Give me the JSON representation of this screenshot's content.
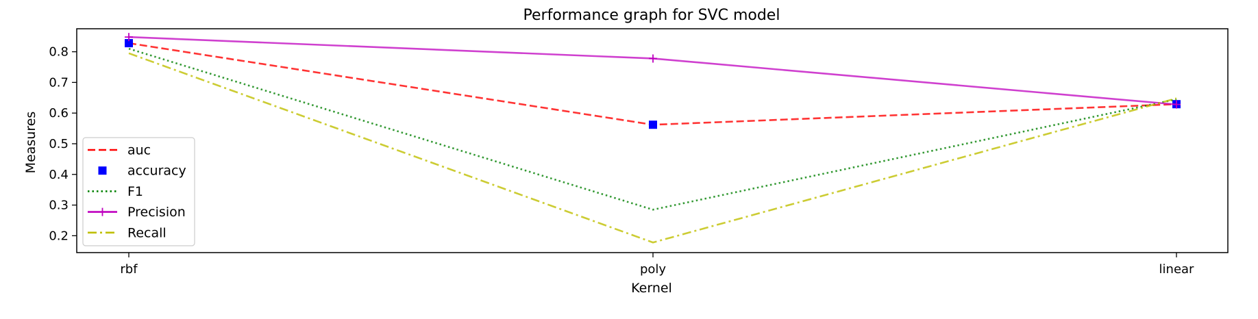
{
  "chart_data": {
    "type": "line",
    "title": "Performance graph for SVC model",
    "xlabel": "Kernel",
    "ylabel": "Measures",
    "categories": [
      "rbf",
      "poly",
      "linear"
    ],
    "ylim": [
      0.145,
      0.875
    ],
    "yticks": [
      "0.2",
      "0.3",
      "0.4",
      "0.5",
      "0.6",
      "0.7",
      "0.8"
    ],
    "grid": false,
    "legend_position": "lower-left",
    "series": [
      {
        "name": "auc",
        "values": [
          0.828,
          0.562,
          0.629
        ],
        "color": "#ff0000",
        "style": "dashed",
        "marker": "none"
      },
      {
        "name": "accuracy",
        "values": [
          0.828,
          0.562,
          0.629
        ],
        "color": "#0000ff",
        "style": "none",
        "marker": "square"
      },
      {
        "name": "F1",
        "values": [
          0.81,
          0.285,
          0.645
        ],
        "color": "#008000",
        "style": "dotted",
        "marker": "none"
      },
      {
        "name": "Precision",
        "values": [
          0.848,
          0.778,
          0.628
        ],
        "color": "#bf00bf",
        "style": "solid",
        "marker": "plus"
      },
      {
        "name": "Recall",
        "values": [
          0.795,
          0.178,
          0.648
        ],
        "color": "#bfbf00",
        "style": "dashdot",
        "marker": "none"
      }
    ]
  }
}
